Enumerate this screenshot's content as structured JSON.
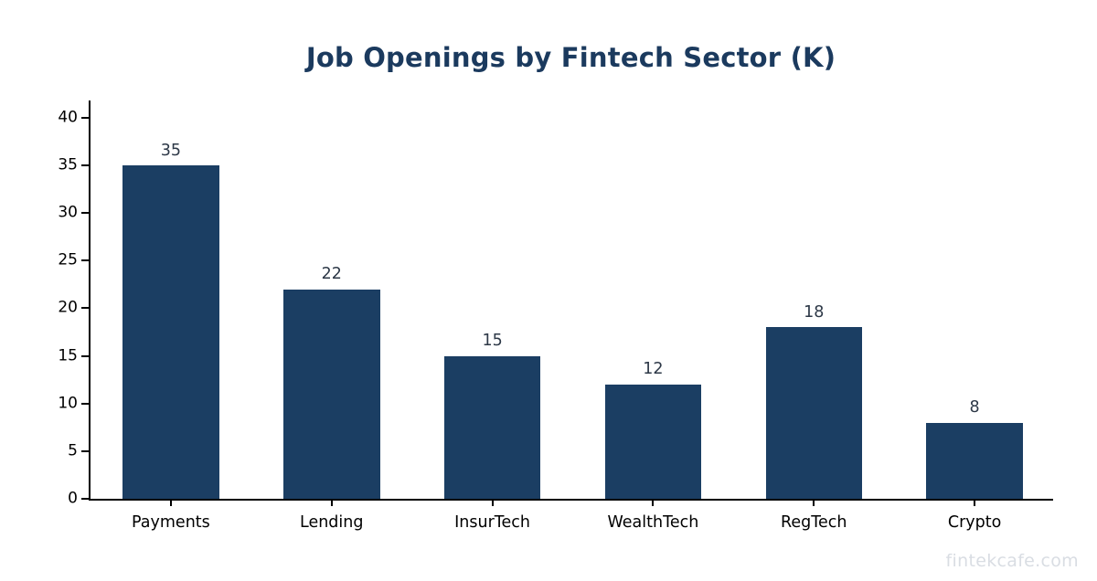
{
  "title": {
    "text": "Job Openings by Fintech Sector (K)",
    "color": "#1b3a5e"
  },
  "watermark": {
    "text": "fintekcafe.com",
    "color": "#d9dde3"
  },
  "colors": {
    "bar": "#1b3e63",
    "value_label": "#2d3847",
    "axis": "#000000",
    "background": "#ffffff"
  },
  "chart_data": {
    "type": "bar",
    "categories": [
      "Payments",
      "Lending",
      "InsurTech",
      "WealthTech",
      "RegTech",
      "Crypto"
    ],
    "values": [
      35,
      22,
      15,
      12,
      18,
      8
    ],
    "title": "Job Openings by Fintech Sector (K)",
    "xlabel": "",
    "ylabel": "",
    "ylim": [
      0,
      42
    ],
    "yticks": [
      0,
      5,
      10,
      15,
      20,
      25,
      30,
      35,
      40
    ],
    "grid": false,
    "legend": null,
    "bar_width_fraction": 0.6,
    "value_labels_shown": true
  }
}
